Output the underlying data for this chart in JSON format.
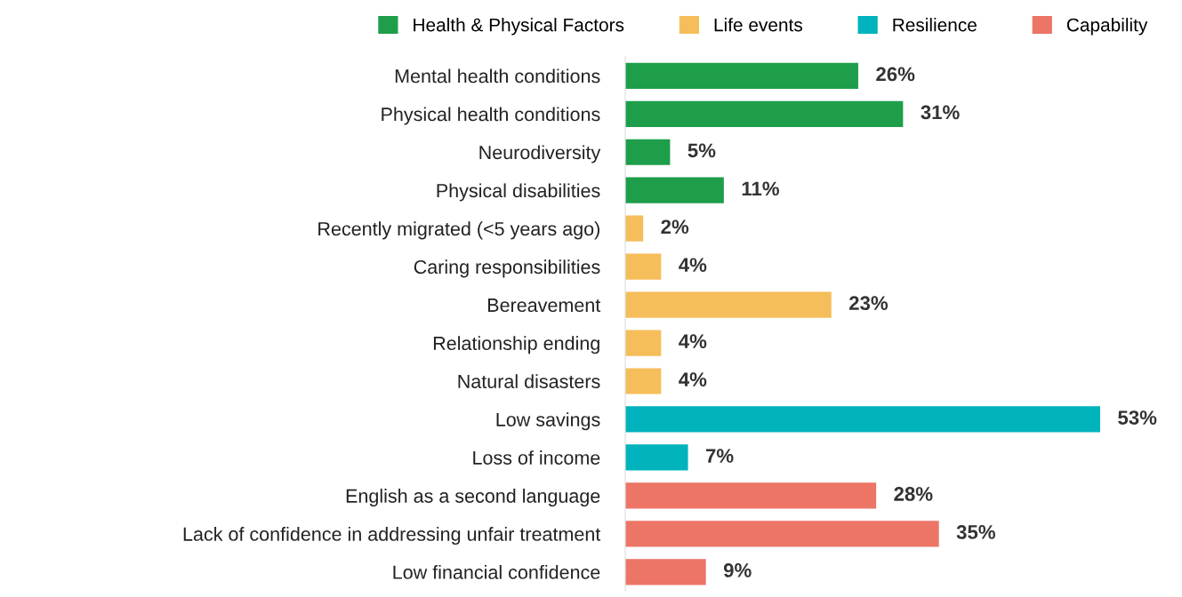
{
  "chart_data": {
    "type": "bar",
    "orientation": "horizontal",
    "legend": "top",
    "tick_labels": "y",
    "categories": [
      "Mental health conditions",
      "Physical health conditions",
      "Neurodiversity",
      "Physical disabilities",
      "Recently migrated (<5 years ago)",
      "Caring responsibilities",
      "Bereavement",
      "Relationship ending",
      "Natural disasters",
      "Low savings",
      "Loss of income",
      "English as a second language",
      "Lack of confidence in addressing unfair treatment",
      "Low financial confidence"
    ],
    "series": [
      {
        "name": "Health & Physical Factors",
        "color": "#1e9e4a",
        "values": [
          26,
          31,
          5,
          11,
          null,
          null,
          null,
          null,
          null,
          null,
          null,
          null,
          null,
          null
        ],
        "value_labels": [
          "26%",
          "31%",
          "5%",
          "11%",
          null,
          null,
          null,
          null,
          null,
          null,
          null,
          null,
          null,
          null
        ]
      },
      {
        "name": "Life events",
        "color": "#f6be5a",
        "values": [
          null,
          null,
          null,
          null,
          2,
          4,
          23,
          4,
          4,
          null,
          null,
          null,
          null,
          null
        ],
        "value_labels": [
          null,
          null,
          null,
          null,
          "2%",
          "4%",
          "23%",
          "4%",
          "4%",
          null,
          null,
          null,
          null,
          null
        ]
      },
      {
        "name": "Resilience",
        "color": "#00b3bd",
        "values": [
          null,
          null,
          null,
          null,
          null,
          null,
          null,
          null,
          null,
          53,
          7,
          null,
          null,
          null
        ],
        "value_labels": [
          null,
          null,
          null,
          null,
          null,
          null,
          null,
          null,
          null,
          "53%",
          "7%",
          null,
          null,
          null
        ]
      },
      {
        "name": "Capability",
        "color": "#ec7566",
        "values": [
          null,
          null,
          null,
          null,
          null,
          null,
          null,
          null,
          null,
          null,
          null,
          28,
          35,
          9
        ],
        "value_labels": [
          null,
          null,
          null,
          null,
          null,
          null,
          null,
          null,
          null,
          null,
          null,
          "28%",
          "35%",
          "9%"
        ]
      }
    ]
  }
}
